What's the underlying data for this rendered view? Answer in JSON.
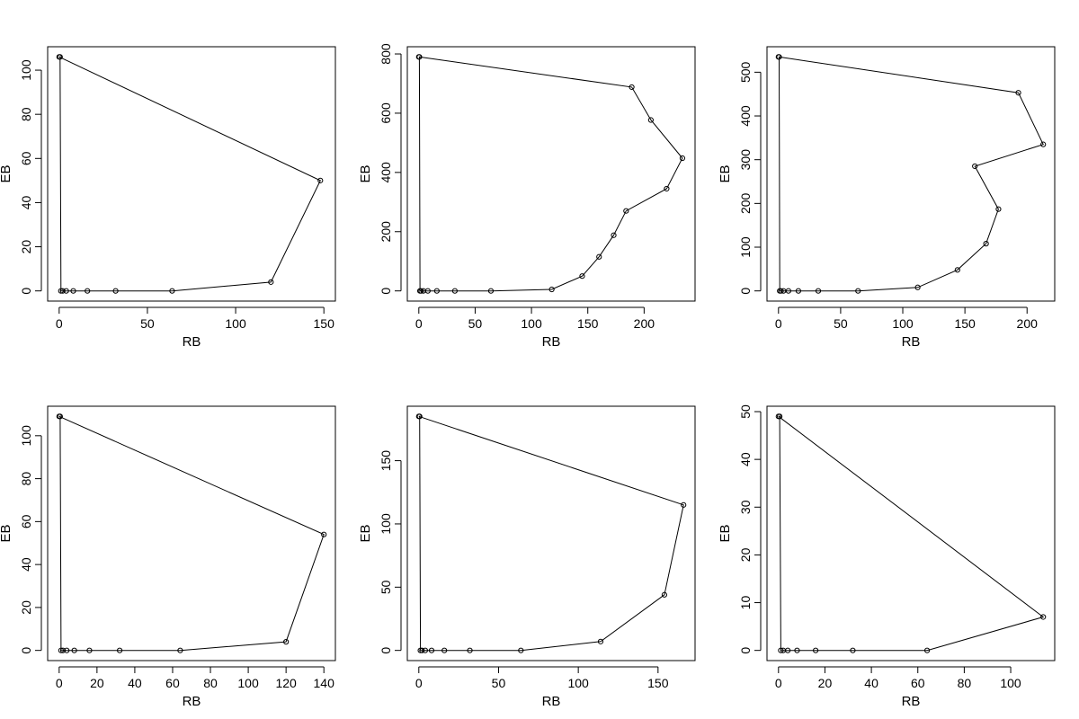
{
  "chart_data": [
    {
      "type": "line",
      "xlabel": "RB",
      "ylabel": "EB",
      "xlim": [
        0,
        150
      ],
      "ylim": [
        0,
        106
      ],
      "xticks": [
        0,
        50,
        100,
        150
      ],
      "yticks": [
        0,
        20,
        40,
        60,
        80,
        100
      ],
      "grid": false,
      "x": [
        0,
        0.5,
        1,
        2,
        4,
        8,
        16,
        32,
        64,
        120,
        148
      ],
      "y": [
        106,
        106,
        0,
        0,
        0,
        0,
        0,
        0,
        0,
        4,
        50
      ],
      "closed": true
    },
    {
      "type": "line",
      "xlabel": "RB",
      "ylabel": "EB",
      "xlim": [
        0,
        235
      ],
      "ylim": [
        0,
        790
      ],
      "xticks": [
        0,
        50,
        100,
        150,
        200
      ],
      "yticks": [
        0,
        200,
        400,
        600,
        800
      ],
      "grid": false,
      "x": [
        0,
        0.5,
        1,
        2,
        4,
        8,
        16,
        32,
        64,
        118,
        145,
        160,
        173,
        184,
        220,
        234,
        206,
        189
      ],
      "y": [
        790,
        790,
        0,
        0,
        0,
        0,
        0,
        0,
        0,
        5,
        50,
        115,
        188,
        270,
        345,
        448,
        577,
        688
      ],
      "closed": true
    },
    {
      "type": "line",
      "xlabel": "RB",
      "ylabel": "EB",
      "xlim": [
        0,
        213
      ],
      "ylim": [
        0,
        535
      ],
      "xticks": [
        0,
        50,
        100,
        150,
        200
      ],
      "yticks": [
        0,
        100,
        200,
        300,
        400,
        500
      ],
      "grid": false,
      "x": [
        0,
        0.5,
        1,
        2,
        4,
        8,
        16,
        32,
        64,
        112,
        144,
        167,
        177,
        158,
        213,
        193
      ],
      "y": [
        535,
        535,
        0,
        0,
        0,
        0,
        0,
        0,
        0,
        8,
        48,
        108,
        187,
        285,
        335,
        453
      ],
      "closed": true
    },
    {
      "type": "line",
      "xlabel": "RB",
      "ylabel": "EB",
      "xlim": [
        0,
        140
      ],
      "ylim": [
        0,
        109
      ],
      "xticks": [
        0,
        20,
        40,
        60,
        80,
        100,
        120,
        140
      ],
      "yticks": [
        0,
        20,
        40,
        60,
        80,
        100
      ],
      "grid": false,
      "x": [
        0,
        0.5,
        1,
        2,
        4,
        8,
        16,
        32,
        64,
        120,
        140
      ],
      "y": [
        109,
        109,
        0,
        0,
        0,
        0,
        0,
        0,
        0,
        4,
        54
      ],
      "closed": true
    },
    {
      "type": "line",
      "xlabel": "RB",
      "ylabel": "EB",
      "xlim": [
        0,
        166
      ],
      "ylim": [
        0,
        185
      ],
      "xticks": [
        0,
        50,
        100,
        150
      ],
      "yticks": [
        0,
        50,
        100,
        150
      ],
      "grid": false,
      "x": [
        0,
        0.5,
        1,
        2,
        4,
        8,
        16,
        32,
        64,
        114,
        154,
        166
      ],
      "y": [
        185,
        185,
        0,
        0,
        0,
        0,
        0,
        0,
        0,
        7,
        44,
        115
      ],
      "closed": true
    },
    {
      "type": "line",
      "xlabel": "RB",
      "ylabel": "EB",
      "xlim": [
        0,
        114
      ],
      "ylim": [
        0,
        49
      ],
      "xticks": [
        0,
        20,
        40,
        60,
        80,
        100
      ],
      "yticks": [
        0,
        10,
        20,
        30,
        40,
        50
      ],
      "grid": false,
      "x": [
        0,
        0.5,
        1,
        2,
        4,
        8,
        16,
        32,
        64,
        114
      ],
      "y": [
        49,
        49,
        0,
        0,
        0,
        0,
        0,
        0,
        0,
        7
      ],
      "closed": true
    }
  ]
}
